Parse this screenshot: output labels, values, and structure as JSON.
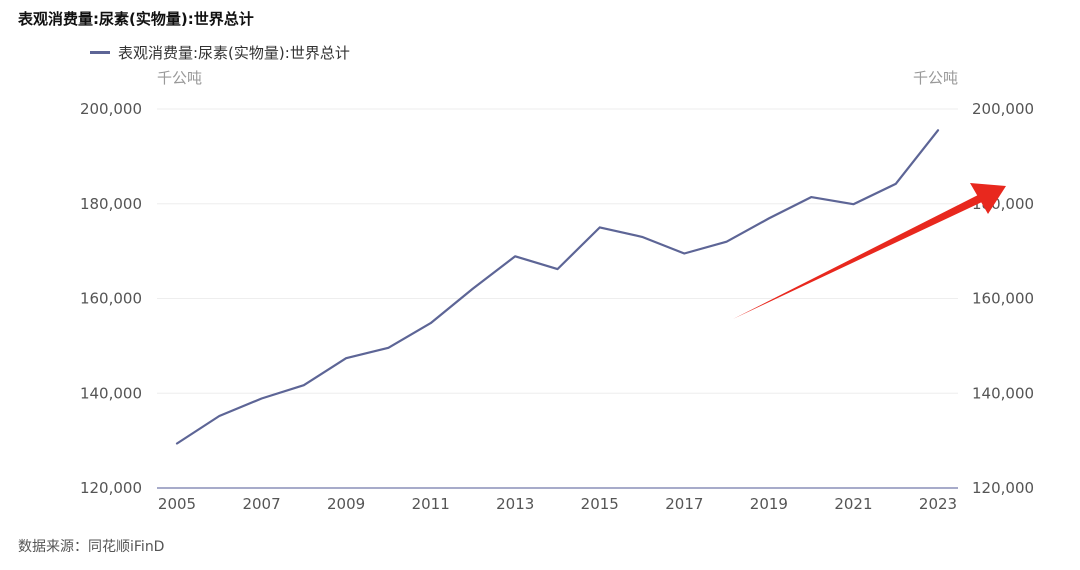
{
  "chart_data": {
    "type": "line",
    "title": "表观消费量:尿素(实物量):世界总计",
    "legend": [
      "表观消费量:尿素(实物量):世界总计"
    ],
    "legend_position": "top-left",
    "left_unit": "千公吨",
    "right_unit": "千公吨",
    "ylim": [
      120000,
      200000
    ],
    "yticks": [
      120000,
      140000,
      160000,
      180000,
      200000
    ],
    "ytick_labels": [
      "120,000",
      "140,000",
      "160,000",
      "180,000",
      "200,000"
    ],
    "x_tick_labels": [
      "2005",
      "2007",
      "2009",
      "2011",
      "2013",
      "2015",
      "2017",
      "2019",
      "2021",
      "2023"
    ],
    "grid": true,
    "series": [
      {
        "name": "表观消费量:尿素(实物量):世界总计",
        "color": "#5d6596",
        "x": [
          2005,
          2006,
          2007,
          2008,
          2009,
          2010,
          2011,
          2012,
          2013,
          2014,
          2015,
          2016,
          2017,
          2018,
          2019,
          2020,
          2021,
          2022,
          2023
        ],
        "values": [
          129400,
          135200,
          138900,
          141700,
          147400,
          149600,
          154800,
          162100,
          168900,
          166200,
          175000,
          173000,
          169500,
          172000,
          176900,
          181400,
          179900,
          184200,
          195500
        ]
      }
    ],
    "annotation": {
      "type": "arrow",
      "color": "#e8281e",
      "direction": "up-right"
    }
  },
  "source": "数据来源：同花顺iFinD"
}
